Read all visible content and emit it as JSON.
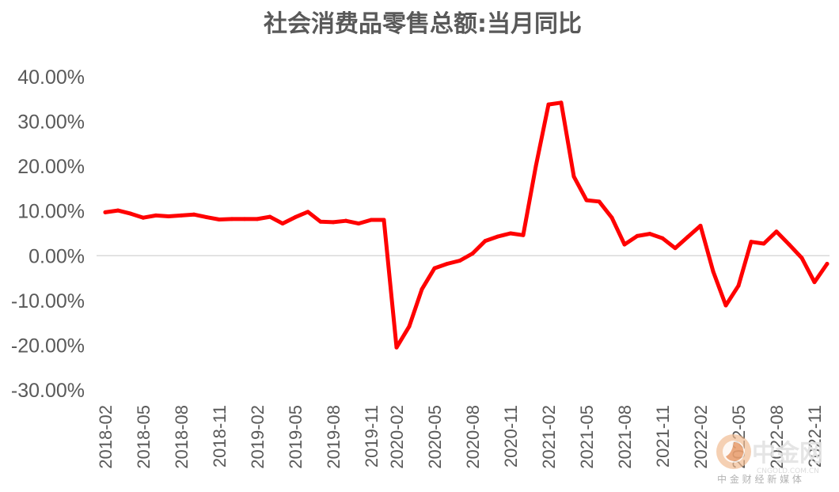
{
  "chart_data": {
    "type": "line",
    "title": "社会消费品零售总额:当月同比",
    "xlabel": "",
    "ylabel": "",
    "ylim": [
      -30,
      40
    ],
    "yticks": [
      "40.00%",
      "30.00%",
      "20.00%",
      "10.00%",
      "0.00%",
      "-10.00%",
      "-20.00%",
      "-30.00%"
    ],
    "ytick_values": [
      40,
      30,
      20,
      10,
      0,
      -10,
      -20,
      -30
    ],
    "grid": false,
    "zero_line": true,
    "legend": "none",
    "x": [
      "2018-02",
      "2018-03",
      "2018-04",
      "2018-05",
      "2018-06",
      "2018-07",
      "2018-08",
      "2018-09",
      "2018-10",
      "2018-11",
      "2018-12",
      "2019-01",
      "2019-02",
      "2019-03",
      "2019-04",
      "2019-05",
      "2019-06",
      "2019-07",
      "2019-08",
      "2019-09",
      "2019-10",
      "2019-11",
      "2019-12",
      "2020-02",
      "2020-03",
      "2020-04",
      "2020-05",
      "2020-06",
      "2020-07",
      "2020-08",
      "2020-09",
      "2020-10",
      "2020-11",
      "2020-12",
      "2021-01",
      "2021-02",
      "2021-03",
      "2021-04",
      "2021-05",
      "2021-06",
      "2021-07",
      "2021-08",
      "2021-09",
      "2021-10",
      "2021-11",
      "2021-12",
      "2022-01",
      "2022-02",
      "2022-03",
      "2022-04",
      "2022-05",
      "2022-06",
      "2022-07",
      "2022-08",
      "2022-09",
      "2022-10",
      "2022-11",
      "2022-12"
    ],
    "xtick_labels": [
      "2018-02",
      "2018-05",
      "2018-08",
      "2018-11",
      "2019-02",
      "2019-05",
      "2019-08",
      "2019-11",
      "2020-02",
      "2020-05",
      "2020-08",
      "2020-11",
      "2021-02",
      "2021-05",
      "2021-08",
      "2021-11",
      "2022-02",
      "2022-05",
      "2022-08",
      "2022-11"
    ],
    "series": [
      {
        "values": [
          9.7,
          10.1,
          9.4,
          8.5,
          9.0,
          8.8,
          9.0,
          9.2,
          8.6,
          8.1,
          8.2,
          8.2,
          8.2,
          8.7,
          7.2,
          8.6,
          9.8,
          7.6,
          7.5,
          7.8,
          7.2,
          8.0,
          8.0,
          -20.5,
          -15.8,
          -7.5,
          -2.8,
          -1.8,
          -1.1,
          0.5,
          3.3,
          4.3,
          5.0,
          4.6,
          20.0,
          33.8,
          34.2,
          17.7,
          12.4,
          12.1,
          8.5,
          2.5,
          4.4,
          4.9,
          3.9,
          1.7,
          4.2,
          6.7,
          -3.5,
          -11.1,
          -6.7,
          3.1,
          2.7,
          5.4,
          2.5,
          -0.5,
          -5.9,
          -1.8
        ],
        "color": "#ff0000"
      }
    ],
    "axis_color": "#d9d9d9"
  },
  "watermark": {
    "logo_name": "zhongjin-logo-icon",
    "text_main": "中金网",
    "text_domain": "CNGOLD.COM.CN",
    "tagline": "中 金 财 经 新 媒 体"
  }
}
